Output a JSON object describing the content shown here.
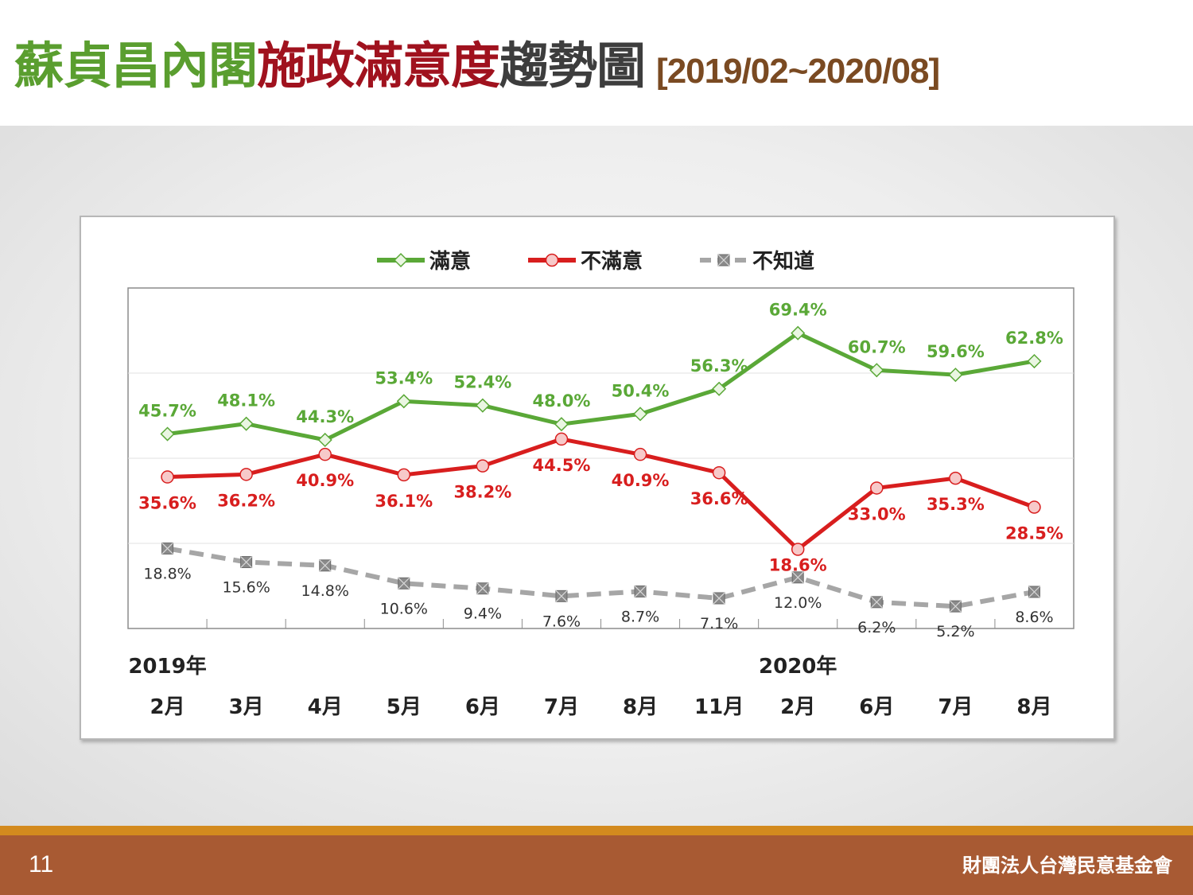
{
  "title": {
    "part1": "蘇貞昌內閣",
    "part2": "施政滿意度",
    "part3": "趨勢圖",
    "range": "[2019/02~2020/08]"
  },
  "footer": {
    "page_number": "11",
    "organization": "財團法人台灣民意基金會"
  },
  "colors": {
    "satisfied": "#5aa837",
    "dissatisfied": "#d81e1e",
    "unknown": "#a6a6a6",
    "title_green": "#5a9e2f",
    "title_red": "#a0121e",
    "footer_brown": "#a85a33",
    "footer_orange": "#d38a1e"
  },
  "chart_data": {
    "type": "line",
    "categories": [
      "2月",
      "3月",
      "4月",
      "5月",
      "6月",
      "7月",
      "8月",
      "11月",
      "2月",
      "6月",
      "7月",
      "8月"
    ],
    "year_labels": [
      {
        "label": "2019年",
        "category_index": 0
      },
      {
        "label": "2020年",
        "category_index": 8
      }
    ],
    "ylim": [
      0,
      80
    ],
    "gridlines": [
      20,
      40,
      60
    ],
    "legend_position": "top-center",
    "series": [
      {
        "name": "滿意",
        "marker": "diamond",
        "values": [
          45.7,
          48.1,
          44.3,
          53.4,
          52.4,
          48.0,
          50.4,
          56.3,
          69.4,
          60.7,
          59.6,
          62.8
        ],
        "labels": [
          "45.7%",
          "48.1%",
          "44.3%",
          "53.4%",
          "52.4%",
          "48.0%",
          "50.4%",
          "56.3%",
          "69.4%",
          "60.7%",
          "59.6%",
          "62.8%"
        ]
      },
      {
        "name": "不滿意",
        "marker": "circle",
        "values": [
          35.6,
          36.2,
          40.9,
          36.1,
          38.2,
          44.5,
          40.9,
          36.6,
          18.6,
          33.0,
          35.3,
          28.5
        ],
        "labels": [
          "35.6%",
          "36.2%",
          "40.9%",
          "36.1%",
          "38.2%",
          "44.5%",
          "40.9%",
          "36.6%",
          "18.6%",
          "33.0%",
          "35.3%",
          "28.5%"
        ]
      },
      {
        "name": "不知道",
        "marker": "square-x",
        "values": [
          18.8,
          15.6,
          14.8,
          10.6,
          9.4,
          7.6,
          8.7,
          7.1,
          12.0,
          6.2,
          5.2,
          8.6
        ],
        "labels": [
          "18.8%",
          "15.6%",
          "14.8%",
          "10.6%",
          "9.4%",
          "7.6%",
          "8.7%",
          "7.1%",
          "12.0%",
          "6.2%",
          "5.2%",
          "8.6%"
        ]
      }
    ]
  }
}
